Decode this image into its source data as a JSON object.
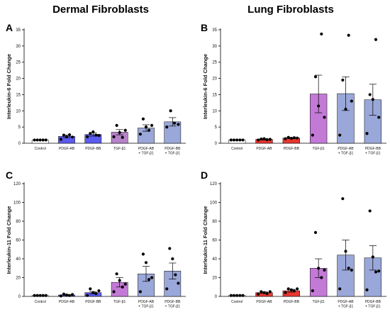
{
  "column_titles": [
    "Dermal Fibroblasts",
    "Lung Fibroblasts"
  ],
  "chart_data": [
    {
      "panel": "A",
      "type": "bar",
      "title": "Dermal Fibroblasts",
      "ylabel": "Interleukin-6 Fold Change",
      "ylim": [
        0,
        35
      ],
      "yticks": [
        0,
        5,
        10,
        15,
        20,
        25,
        30,
        35
      ],
      "categories": [
        "Control",
        "PDGF-AB",
        "PDGF-BB",
        "TGF-β1",
        "PDGF-AB\n+ TGF-β1",
        "PDGF-BB\n+ TGF-β1"
      ],
      "values": [
        1.0,
        2.1,
        2.7,
        3.4,
        4.7,
        6.6
      ],
      "errors": [
        0.0,
        0.4,
        0.5,
        0.8,
        1.0,
        1.3
      ],
      "bar_colors": [
        "#ffffff",
        "#5b5bf0",
        "#5b5bf0",
        "#b583c7",
        "#9aa7d9",
        "#9aa7d9"
      ],
      "points": [
        [
          1,
          1,
          1,
          1,
          1
        ],
        [
          1.2,
          2.5,
          2.0,
          2.6,
          1.9
        ],
        [
          2.0,
          3.0,
          3.5,
          2.5,
          2.4
        ],
        [
          2.0,
          5.5,
          3.3,
          1.8,
          4.0
        ],
        [
          2.8,
          7.5,
          5.0,
          4.0,
          5.5
        ],
        [
          5.0,
          10.0,
          6.2,
          5.8
        ]
      ]
    },
    {
      "panel": "B",
      "type": "bar",
      "title": "Lung Fibroblasts",
      "ylabel": "Interleukin-6 Fold Change",
      "ylim": [
        0,
        35
      ],
      "yticks": [
        0,
        5,
        10,
        15,
        20,
        25,
        30,
        35
      ],
      "categories": [
        "Control",
        "PDGF-AB",
        "PDGF-BB",
        "TGF-β1",
        "PDGF-AB\n+ TGF-β1",
        "PDGF-BB\n+ TGF-β1"
      ],
      "values": [
        1.0,
        1.2,
        1.6,
        15.2,
        15.3,
        13.4
      ],
      "errors": [
        0.0,
        0.2,
        0.2,
        5.8,
        5.2,
        4.8
      ],
      "bar_colors": [
        "#ffffff",
        "#e8362f",
        "#e8362f",
        "#c27ad6",
        "#9aa7d9",
        "#9aa7d9"
      ],
      "points": [
        [
          1,
          1,
          1,
          1,
          1
        ],
        [
          1.0,
          1.3,
          1.4,
          1.1,
          1.2
        ],
        [
          1.4,
          1.8,
          1.5,
          1.7,
          1.6
        ],
        [
          2.5,
          20.5,
          11.5,
          33.7,
          8.0
        ],
        [
          2.5,
          19.5,
          10.5,
          33.3,
          13.0
        ],
        [
          3.0,
          15.0,
          13.5,
          32.0,
          8.0
        ]
      ]
    },
    {
      "panel": "C",
      "type": "bar",
      "title": "",
      "ylabel": "Interleukin-11 Fold Change",
      "ylim": [
        0,
        120
      ],
      "yticks": [
        0,
        20,
        40,
        60,
        80,
        100,
        120
      ],
      "categories": [
        "Control",
        "PDGF-AB",
        "PDGF-BB",
        "TGF-β1",
        "PDGF-AB\n+ TGF-β1",
        "PDGF-BB\n+ TGF-β1"
      ],
      "values": [
        1.0,
        1.5,
        4.0,
        15.0,
        24.0,
        27.0
      ],
      "errors": [
        0.0,
        0.5,
        1.2,
        5.0,
        8.0,
        8.5
      ],
      "bar_colors": [
        "#ffffff",
        "#5b5bf0",
        "#5b5bf0",
        "#c27ad6",
        "#9aa7d9",
        "#9aa7d9"
      ],
      "points": [
        [
          1,
          1,
          1,
          1,
          1
        ],
        [
          0.5,
          2.5,
          1.5,
          1.0,
          2.0
        ],
        [
          1.0,
          8.0,
          4.0,
          3.0,
          6.0
        ],
        [
          5.0,
          24.0,
          17.0,
          10.0,
          13.0
        ],
        [
          5.0,
          45.0,
          36.0,
          18.0,
          20.0
        ],
        [
          8.0,
          51.0,
          40.0,
          23.0,
          14.0
        ]
      ]
    },
    {
      "panel": "D",
      "type": "bar",
      "title": "",
      "ylabel": "Interleukin-11 Fold Change",
      "ylim": [
        0,
        120
      ],
      "yticks": [
        0,
        20,
        40,
        60,
        80,
        100,
        120
      ],
      "categories": [
        "Control",
        "PDGF-AB",
        "PDGF-BB",
        "TGF-β1",
        "PDGF-AB\n+ TGF-β1",
        "PDGF-BB\n+ TGF-β1"
      ],
      "values": [
        1.0,
        4.0,
        6.0,
        30.0,
        44.0,
        41.0
      ],
      "errors": [
        0.0,
        0.8,
        1.5,
        10.0,
        16.0,
        13.0
      ],
      "bar_colors": [
        "#ffffff",
        "#e8362f",
        "#e8362f",
        "#c27ad6",
        "#9aa7d9",
        "#9aa7d9"
      ],
      "points": [
        [
          1,
          1,
          1,
          1,
          1
        ],
        [
          2.5,
          5.0,
          4.0,
          3.0,
          5.0
        ],
        [
          4.0,
          8.0,
          7.0,
          6.0,
          8.0
        ],
        [
          6.0,
          68.0,
          30.0,
          20.0,
          28.0
        ],
        [
          8.0,
          104.0,
          48.0,
          30.0,
          28.0
        ],
        [
          7.0,
          91.0,
          42.0,
          26.0,
          27.0
        ]
      ]
    }
  ]
}
